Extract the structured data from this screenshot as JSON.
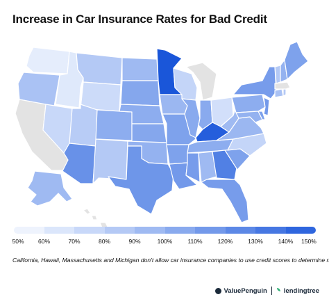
{
  "title": "Increase in Car Insurance Rates for Bad Credit",
  "legend": {
    "labels": [
      "50%",
      "60%",
      "70%",
      "80%",
      "90%",
      "100%",
      "110%",
      "120%",
      "130%",
      "140%",
      "150%"
    ],
    "colors": [
      "#eef3fd",
      "#dbe6fb",
      "#c8d8f9",
      "#b4c9f5",
      "#9fbaf2",
      "#89aaee",
      "#7399ea",
      "#5c88e6",
      "#4677e2",
      "#2f66de",
      "#1a56d9"
    ]
  },
  "no_data_color": "#e3e3e3",
  "footnote": "California, Hawaii, Massachusetts and Michigan don't allow car insurance companies to use credit scores to determine rates.",
  "brand": {
    "valuepenguin": "ValuePenguin",
    "lendingtree": "lendingtree",
    "valuepenguin_icon": "penguin-logo-icon",
    "lendingtree_icon": "leaf-logo-icon"
  },
  "states": {
    "WA": 55,
    "OR": 85,
    "CA": null,
    "NV": 70,
    "ID": 58,
    "MT": 80,
    "WY": 68,
    "UT": 78,
    "AZ": 115,
    "CO": 98,
    "NM": 80,
    "ND": 90,
    "SD": 102,
    "NE": 98,
    "KS": 102,
    "OK": 95,
    "TX": 112,
    "MN": 150,
    "IA": 92,
    "MO": 105,
    "AR": 105,
    "LA": 110,
    "WI": 72,
    "IL": 100,
    "MI": null,
    "IN": 100,
    "OH": 65,
    "KY": 145,
    "TN": 98,
    "MS": 108,
    "AL": 90,
    "GA": 125,
    "FL": 108,
    "SC": 105,
    "NC": 72,
    "VA": 92,
    "WV": 90,
    "PA": 98,
    "NY": 108,
    "VT": 80,
    "NH": 95,
    "ME": 105,
    "MA": null,
    "RI": 80,
    "CT": 85,
    "NJ": 110,
    "DE": 105,
    "MD": 95,
    "AK": 90,
    "HI": null
  }
}
